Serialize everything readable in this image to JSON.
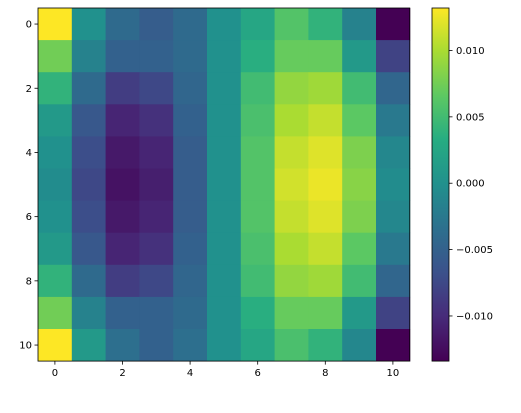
{
  "chart_data": {
    "type": "heatmap",
    "colormap": "viridis",
    "title": "",
    "xlabel": "",
    "ylabel": "",
    "x_ticks": [
      0,
      2,
      4,
      6,
      8,
      10
    ],
    "y_ticks": [
      0,
      2,
      4,
      6,
      8,
      10
    ],
    "x_tick_labels": [
      "0",
      "2",
      "4",
      "6",
      "8",
      "10"
    ],
    "y_tick_labels": [
      "0",
      "2",
      "4",
      "6",
      "8",
      "10"
    ],
    "vmin": -0.0134,
    "vmax": 0.0132,
    "colorbar": {
      "ticks": [
        0.01,
        0.005,
        0.0,
        -0.005,
        -0.01
      ],
      "tick_labels": [
        "0.010",
        "0.005",
        "0.000",
        "−0.005",
        "−0.010"
      ]
    },
    "rows": 11,
    "cols": 11,
    "values": [
      [
        0.0132,
        0.0,
        -0.004,
        -0.0055,
        -0.004,
        0.0,
        0.0025,
        0.006,
        0.004,
        -0.0015,
        -0.0134
      ],
      [
        0.0075,
        -0.0015,
        -0.005,
        -0.005,
        -0.004,
        0.0,
        0.0035,
        0.007,
        0.007,
        0.001,
        -0.008
      ],
      [
        0.004,
        -0.004,
        -0.0085,
        -0.0075,
        -0.0045,
        0.0,
        0.005,
        0.009,
        0.0095,
        0.005,
        -0.0045
      ],
      [
        0.001,
        -0.006,
        -0.0105,
        -0.0095,
        -0.005,
        0.0,
        0.0055,
        0.01,
        0.011,
        0.0065,
        -0.0025
      ],
      [
        0.0,
        -0.007,
        -0.0115,
        -0.0105,
        -0.0055,
        0.0,
        0.006,
        0.011,
        0.012,
        0.008,
        -0.001
      ],
      [
        -0.0005,
        -0.0075,
        -0.012,
        -0.011,
        -0.0055,
        0.0,
        0.006,
        0.0115,
        0.0125,
        0.0085,
        -0.0005
      ],
      [
        0.0,
        -0.007,
        -0.0115,
        -0.0105,
        -0.0055,
        0.0,
        0.006,
        0.011,
        0.012,
        0.008,
        -0.001
      ],
      [
        0.001,
        -0.006,
        -0.0105,
        -0.0095,
        -0.005,
        0.0,
        0.0055,
        0.01,
        0.011,
        0.0065,
        -0.0025
      ],
      [
        0.004,
        -0.004,
        -0.0085,
        -0.0075,
        -0.0045,
        0.0,
        0.005,
        0.009,
        0.0095,
        0.005,
        -0.0045
      ],
      [
        0.0075,
        -0.0015,
        -0.005,
        -0.005,
        -0.004,
        0.0,
        0.0035,
        0.007,
        0.007,
        0.001,
        -0.008
      ],
      [
        0.0132,
        0.001,
        -0.0035,
        -0.005,
        -0.0035,
        0.0,
        0.0025,
        0.0055,
        0.004,
        -0.001,
        -0.0134
      ]
    ]
  }
}
